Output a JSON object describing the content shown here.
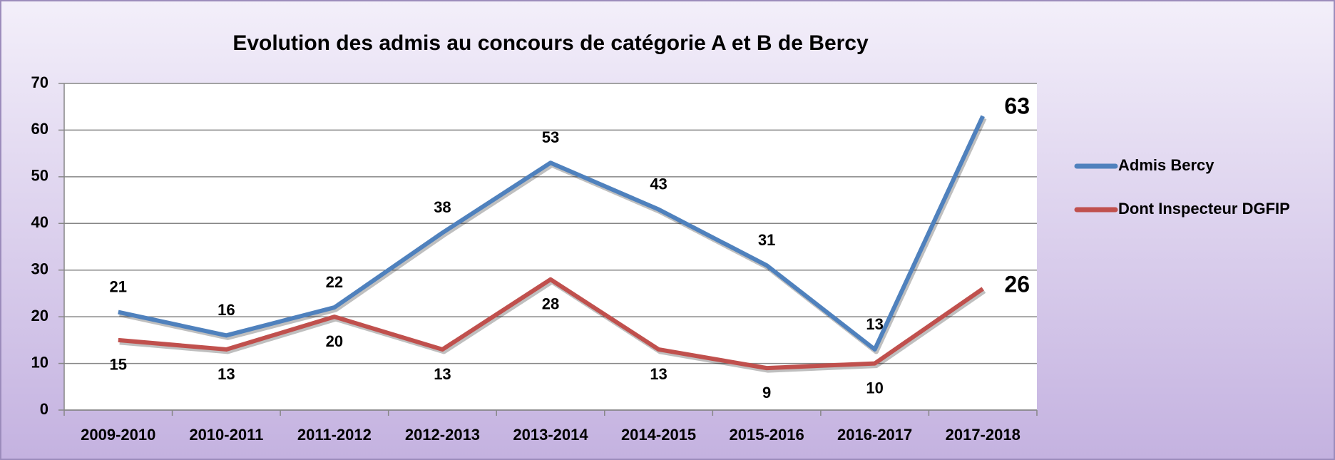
{
  "chart_data": {
    "type": "line",
    "title": "Evolution des admis au concours de catégorie A et B de Bercy",
    "categories": [
      "2009-2010",
      "2010-2011",
      "2011-2012",
      "2012-2013",
      "2013-2014",
      "2014-2015",
      "2015-2016",
      "2016-2017",
      "2017-2018"
    ],
    "series": [
      {
        "name": "Admis Bercy",
        "color": "#4f81bd",
        "values": [
          21,
          16,
          22,
          38,
          53,
          43,
          31,
          13,
          63
        ]
      },
      {
        "name": "Dont Inspecteur DGFIP",
        "color": "#c0504d",
        "values": [
          15,
          13,
          20,
          13,
          28,
          13,
          9,
          10,
          26
        ]
      }
    ],
    "ylim": [
      0,
      70
    ],
    "yticks": [
      0,
      10,
      20,
      30,
      40,
      50,
      60,
      70
    ],
    "grid": true,
    "legend": "right"
  }
}
